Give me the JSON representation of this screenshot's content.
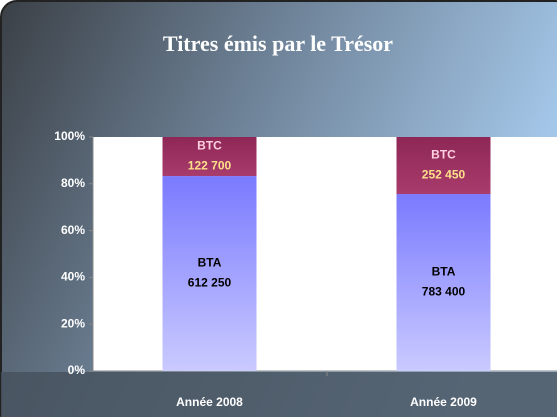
{
  "chart_data": {
    "type": "bar",
    "stacking": "percent",
    "title": "Titres émis par le Trésor",
    "categories": [
      "Année 2008",
      "Année 2009"
    ],
    "series": [
      {
        "name": "BTA",
        "color": "#8080ff",
        "values": [
          612250,
          783400
        ],
        "value_labels": [
          "612 250",
          "783 400"
        ]
      },
      {
        "name": "BTC",
        "color": "#9b2f62",
        "values": [
          122700,
          252450
        ],
        "value_labels": [
          "122 700",
          "252 450"
        ]
      }
    ],
    "ylim": [
      0,
      100
    ],
    "yticks": [
      {
        "value": 0,
        "label": "0%"
      },
      {
        "value": 20,
        "label": "20%"
      },
      {
        "value": 40,
        "label": "40%"
      },
      {
        "value": 60,
        "label": "60%"
      },
      {
        "value": 80,
        "label": "80%"
      },
      {
        "value": 100,
        "label": "100%"
      }
    ]
  }
}
